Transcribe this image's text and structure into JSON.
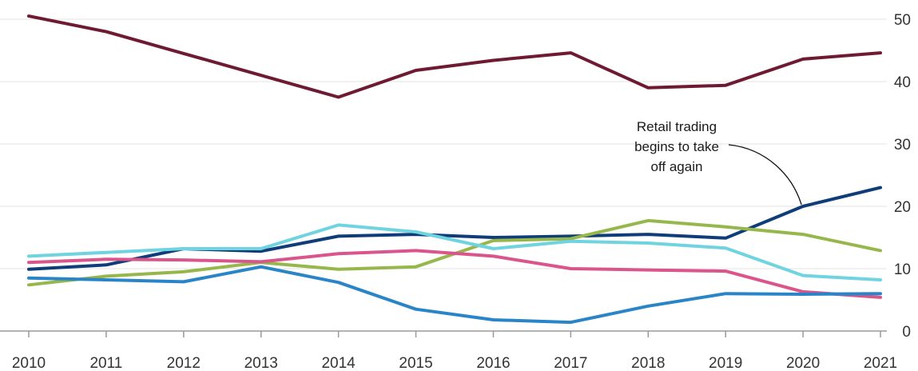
{
  "chart_data": {
    "type": "line",
    "title": "",
    "xlabel": "",
    "ylabel": "",
    "x": [
      2010,
      2011,
      2012,
      2013,
      2014,
      2015,
      2016,
      2017,
      2018,
      2019,
      2020,
      2021
    ],
    "x_tick_labels": [
      "2010",
      "2011",
      "2012",
      "2013",
      "2014",
      "2015",
      "2016",
      "2017",
      "2018",
      "2019",
      "2020",
      "2021"
    ],
    "y_ticks": [
      0,
      10,
      20,
      30,
      40,
      50
    ],
    "y_tick_labels": [
      "0",
      "10",
      "20",
      "30",
      "40",
      "50"
    ],
    "ylim": [
      0,
      50
    ],
    "y_axis_position": "right",
    "grid": true,
    "series": [
      {
        "color": "#6e1a33",
        "values": [
          50.5,
          48.0,
          44.5,
          41.0,
          37.5,
          41.8,
          43.4,
          44.6,
          39.0,
          39.4,
          43.6,
          44.6
        ]
      },
      {
        "color": "#0f3d7a",
        "values": [
          9.9,
          10.6,
          13.2,
          12.8,
          15.2,
          15.5,
          15.0,
          15.2,
          15.5,
          14.9,
          20.0,
          23.0
        ]
      },
      {
        "color": "#96b74b",
        "values": [
          7.4,
          8.8,
          9.5,
          11.0,
          9.9,
          10.3,
          14.5,
          14.8,
          17.7,
          16.7,
          15.5,
          12.9
        ]
      },
      {
        "color": "#6fd3e0",
        "values": [
          12.0,
          12.6,
          13.2,
          13.2,
          17.0,
          15.9,
          13.2,
          14.4,
          14.1,
          13.3,
          8.9,
          8.2
        ]
      },
      {
        "color": "#d9558b",
        "values": [
          11.0,
          11.5,
          11.4,
          11.1,
          12.4,
          12.9,
          12.0,
          10.0,
          9.8,
          9.6,
          6.3,
          5.4
        ]
      },
      {
        "color": "#2a85c8",
        "values": [
          8.5,
          8.2,
          7.9,
          10.3,
          7.8,
          3.5,
          1.8,
          1.4,
          4.0,
          6.0,
          5.9,
          6.0
        ]
      }
    ],
    "annotations": [
      {
        "lines": [
          "Retail trading",
          "begins to take",
          "off again"
        ],
        "target_x": 2020,
        "target_y": 20.0
      }
    ]
  }
}
